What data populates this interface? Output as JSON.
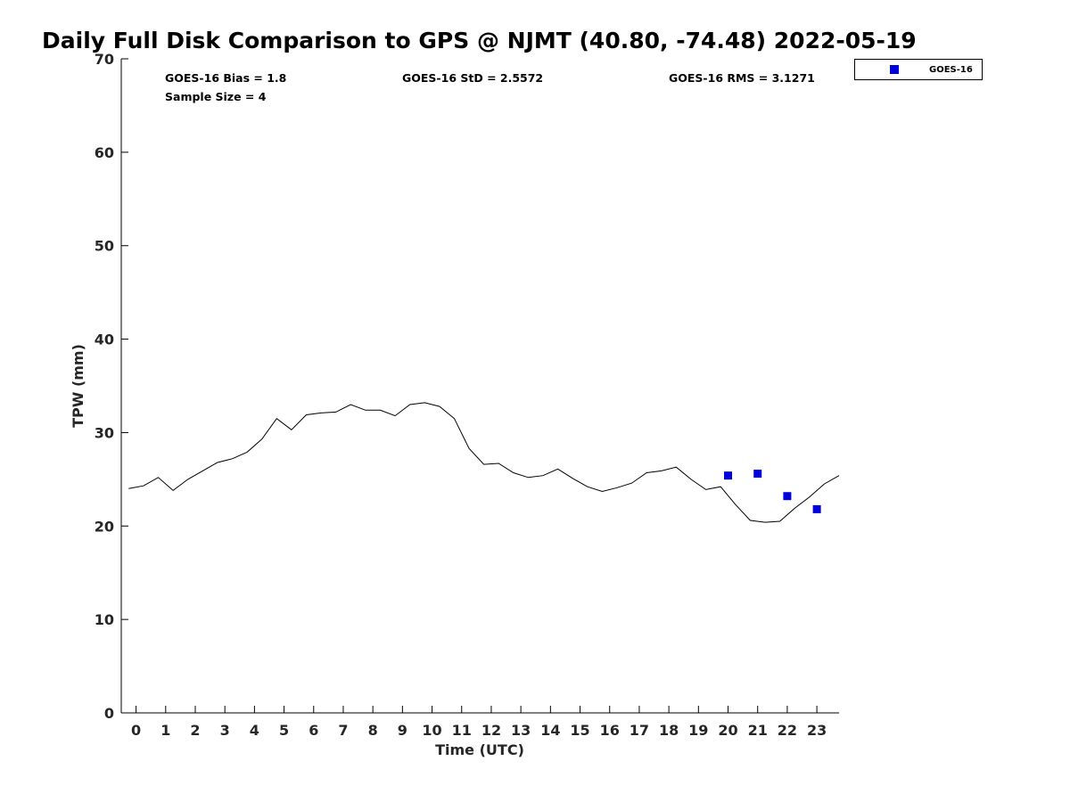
{
  "chart_data": {
    "type": "line",
    "title": "Daily Full Disk Comparison to GPS @ NJMT (40.80, -74.48) 2022-05-19",
    "xlabel": "Time (UTC)",
    "ylabel": "TPW (mm)",
    "xlim": [
      -0.5,
      23.75
    ],
    "ylim": [
      0,
      70
    ],
    "xticks": [
      0,
      1,
      2,
      3,
      4,
      5,
      6,
      7,
      8,
      9,
      10,
      11,
      12,
      13,
      14,
      15,
      16,
      17,
      18,
      19,
      20,
      21,
      22,
      23
    ],
    "yticks": [
      0,
      10,
      20,
      30,
      40,
      50,
      60,
      70
    ],
    "grid": false,
    "legend_position": "top-right, outside plot",
    "stats": {
      "bias": "GOES-16 Bias = 1.8",
      "sample_size": "Sample Size = 4",
      "std": "GOES-16 StD = 2.5572",
      "rms": "GOES-16 RMS = 3.1271"
    },
    "series": [
      {
        "type": "line",
        "color": "#000000",
        "x": [
          -0.25,
          0.25,
          0.75,
          1.25,
          1.75,
          2.25,
          2.75,
          3.25,
          3.75,
          4.25,
          4.75,
          5.25,
          5.75,
          6.25,
          6.75,
          7.25,
          7.75,
          8.25,
          8.75,
          9.25,
          9.75,
          10.25,
          10.75,
          11.25,
          11.75,
          12.25,
          12.75,
          13.25,
          13.75,
          14.25,
          14.75,
          15.25,
          15.75,
          16.25,
          16.75,
          17.25,
          17.75,
          18.25,
          18.75,
          19.25,
          19.75,
          20.25,
          20.75,
          21.25,
          21.75,
          22.25,
          22.75,
          23.25,
          23.75
        ],
        "values": [
          24.0,
          24.3,
          25.2,
          23.8,
          25.0,
          25.9,
          26.8,
          27.2,
          27.9,
          29.3,
          31.5,
          30.3,
          31.9,
          32.1,
          32.2,
          33.0,
          32.4,
          32.4,
          31.8,
          33.0,
          33.2,
          32.8,
          31.5,
          28.3,
          26.6,
          26.7,
          25.7,
          25.2,
          25.4,
          26.1,
          25.1,
          24.2,
          23.7,
          24.1,
          24.6,
          25.7,
          25.9,
          26.3,
          25.0,
          23.9,
          24.2,
          22.3,
          20.6,
          20.4,
          20.5,
          21.9,
          23.1,
          24.5,
          25.4
        ]
      },
      {
        "name": "GOES-16",
        "type": "scatter",
        "marker": "square",
        "color": "#0000dd",
        "x": [
          20,
          21,
          22,
          23
        ],
        "values": [
          25.4,
          25.6,
          23.2,
          21.8
        ]
      }
    ]
  }
}
